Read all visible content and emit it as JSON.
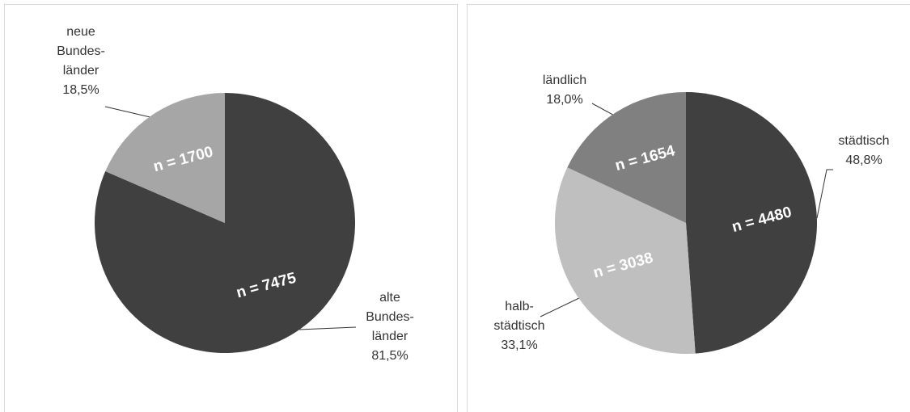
{
  "chart_data": [
    {
      "type": "pie",
      "categories": [
        "alte\nBundes-\nländer",
        "neue\nBundes-\nländer"
      ],
      "values": [
        81.5,
        18.5
      ],
      "value_labels": [
        "81,5%",
        "18,5%"
      ],
      "count_labels": [
        "n = 7475",
        "n = 1700"
      ],
      "colors": [
        "#404040",
        "#a6a6a6"
      ]
    },
    {
      "type": "pie",
      "categories": [
        "städtisch",
        "halb-\nstädtisch",
        "ländlich"
      ],
      "values": [
        48.8,
        33.1,
        18.0
      ],
      "value_labels": [
        "48,8%",
        "33,1%",
        "18,0%"
      ],
      "count_labels": [
        "n = 4480",
        "n = 3038",
        "n = 1654"
      ],
      "colors": [
        "#404040",
        "#bfbfbf",
        "#808080"
      ]
    }
  ]
}
